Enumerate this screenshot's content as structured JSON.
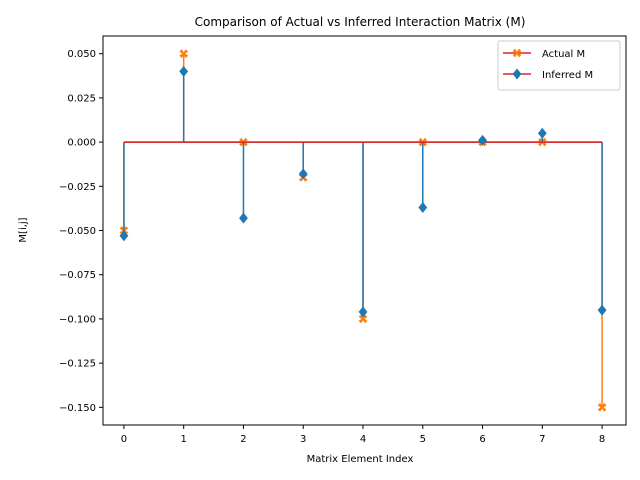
{
  "chart_data": {
    "type": "stem",
    "title": "Comparison of Actual vs Inferred Interaction Matrix (M)",
    "xlabel": "Matrix Element Index",
    "ylabel": "M[i,j]",
    "x": [
      0,
      1,
      2,
      3,
      4,
      5,
      6,
      7,
      8
    ],
    "xticks": [
      "0",
      "1",
      "2",
      "3",
      "4",
      "5",
      "6",
      "7",
      "8"
    ],
    "xlim": [
      -0.35,
      8.4
    ],
    "ylim": [
      -0.16,
      0.06
    ],
    "yticks": [
      0.05,
      0.025,
      0.0,
      -0.025,
      -0.05,
      -0.075,
      -0.1,
      -0.125,
      -0.15
    ],
    "ytick_labels": [
      "0.050",
      "0.025",
      "0.000",
      "−0.025",
      "−0.050",
      "−0.075",
      "−0.100",
      "−0.125",
      "−0.150"
    ],
    "baseline": 0,
    "series": [
      {
        "name": "Actual M",
        "values": [
          -0.05,
          0.05,
          0.0,
          -0.02,
          -0.1,
          0.0,
          0.0,
          0.0,
          -0.15
        ],
        "color": "#ff7f0e",
        "marker": "x-filled",
        "baseline_color": "#d62728"
      },
      {
        "name": "Inferred M",
        "values": [
          -0.053,
          0.04,
          -0.043,
          -0.018,
          -0.096,
          -0.037,
          0.001,
          0.005,
          -0.095
        ],
        "color": "#1f77b4",
        "marker": "diamond",
        "baseline_color": "#d62728"
      }
    ],
    "legend_position": "upper right",
    "grid": false
  }
}
